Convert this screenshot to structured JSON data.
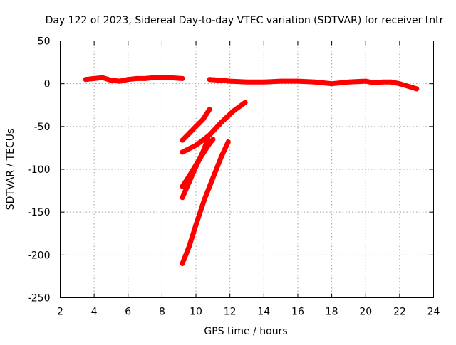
{
  "chart_data": {
    "type": "scatter",
    "title": "Day 122 of 2023, Sidereal Day-to-day VTEC variation (SDTVAR) for receiver tntr",
    "xlabel": "GPS time / hours",
    "ylabel": "SDTVAR / TECUs",
    "xlim": [
      2,
      24
    ],
    "ylim": [
      -250,
      50
    ],
    "xticks": [
      2,
      4,
      6,
      8,
      10,
      12,
      14,
      16,
      18,
      20,
      22,
      24
    ],
    "yticks": [
      50,
      0,
      -50,
      -100,
      -150,
      -200,
      -250
    ],
    "grid": true,
    "legend": "none",
    "series_color": "#ff0000",
    "series": [
      {
        "x": [
          3.5,
          4.0,
          4.5,
          5.0,
          5.5,
          6.0,
          6.5,
          7.0,
          7.5,
          8.0,
          8.5,
          9.2
        ],
        "y": [
          5,
          6,
          7,
          4,
          3,
          5,
          6,
          6,
          7,
          7,
          7,
          6
        ]
      },
      {
        "x": [
          10.8,
          11.5,
          12.0,
          13.0,
          14.0,
          15.0,
          16.0,
          17.0,
          17.5,
          18.0,
          19.0,
          20.0,
          20.5,
          21.0,
          21.5,
          22.0,
          22.5,
          23.0
        ],
        "y": [
          5,
          4,
          3,
          2,
          2,
          3,
          3,
          2,
          1,
          0,
          2,
          3,
          1,
          2,
          2,
          0,
          -3,
          -6
        ]
      },
      {
        "x": [
          9.2,
          9.6,
          10.0,
          10.4,
          10.8
        ],
        "y": [
          -66,
          -58,
          -50,
          -42,
          -30
        ]
      },
      {
        "x": [
          9.2,
          10.0,
          10.8,
          11.5,
          12.2,
          12.9
        ],
        "y": [
          -80,
          -72,
          -60,
          -45,
          -32,
          -22
        ]
      },
      {
        "x": [
          9.2,
          9.6,
          10.0,
          10.4,
          10.8,
          11.0
        ],
        "y": [
          -120,
          -108,
          -95,
          -82,
          -70,
          -65
        ]
      },
      {
        "x": [
          9.2,
          9.6,
          10.0,
          10.4,
          10.7
        ],
        "y": [
          -133,
          -115,
          -97,
          -80,
          -65
        ]
      },
      {
        "x": [
          9.2,
          9.6,
          10.0,
          10.5,
          11.0,
          11.5,
          11.9
        ],
        "y": [
          -210,
          -190,
          -165,
          -135,
          -110,
          -85,
          -68
        ]
      }
    ]
  }
}
